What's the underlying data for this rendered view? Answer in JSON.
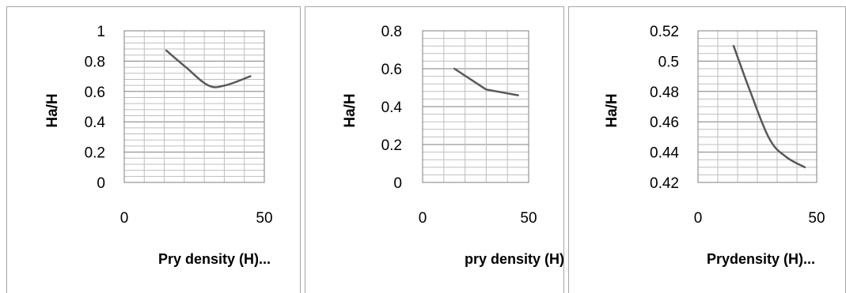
{
  "chart_data": [
    {
      "type": "line",
      "xlabel": "Pry density (H)...",
      "ylabel": "Ha/H",
      "xlim": [
        0,
        50
      ],
      "ylim": [
        0,
        1
      ],
      "x_ticks": [
        "0",
        "50"
      ],
      "y_ticks": [
        "1",
        "0.8",
        "0.6",
        "0.4",
        "0.2",
        "0"
      ],
      "grid": true,
      "smooth": true,
      "series": [
        {
          "x": [
            15,
            22,
            30,
            36,
            45
          ],
          "y": [
            0.87,
            0.76,
            0.64,
            0.64,
            0.7
          ]
        }
      ]
    },
    {
      "type": "line",
      "xlabel": "pry density (H).",
      "ylabel": "Ha/H",
      "xlim": [
        0,
        50
      ],
      "ylim": [
        0,
        0.8
      ],
      "x_ticks": [
        "0",
        "50"
      ],
      "y_ticks": [
        "0.8",
        "0.6",
        "0.4",
        "0.2",
        "0"
      ],
      "grid": true,
      "smooth": false,
      "series": [
        {
          "x": [
            15,
            30,
            45
          ],
          "y": [
            0.6,
            0.49,
            0.46
          ]
        }
      ]
    },
    {
      "type": "line",
      "xlabel": "Prydensity (H)...",
      "ylabel": "Ha/H",
      "xlim": [
        0,
        50
      ],
      "ylim": [
        0.42,
        0.52
      ],
      "x_ticks": [
        "0",
        "50"
      ],
      "y_ticks": [
        "0.52",
        "0.5",
        "0.48",
        "0.46",
        "0.44",
        "0.42"
      ],
      "grid": true,
      "smooth": true,
      "series": [
        {
          "x": [
            15,
            22,
            30,
            37,
            45
          ],
          "y": [
            0.51,
            0.48,
            0.449,
            0.437,
            0.43
          ]
        }
      ]
    }
  ]
}
